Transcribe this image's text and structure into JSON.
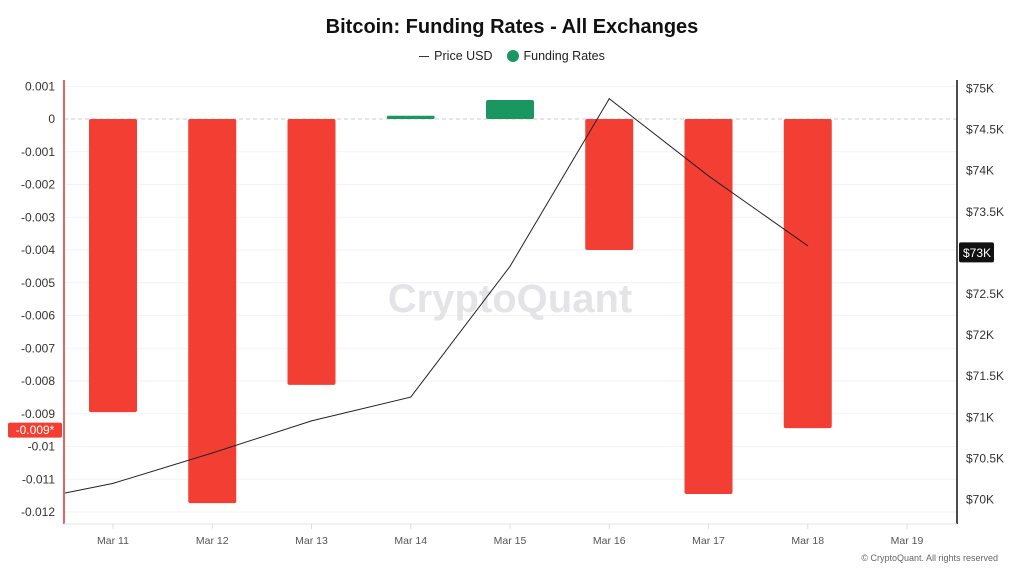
{
  "chart_data": {
    "type": "bar",
    "title": "Bitcoin: Funding Rates - All Exchanges",
    "categories": [
      "Mar 11",
      "Mar 12",
      "Mar 13",
      "Mar 14",
      "Mar 15",
      "Mar 16",
      "Mar 17",
      "Mar 18",
      "Mar 19"
    ],
    "series": [
      {
        "name": "Funding Rates",
        "type": "bar",
        "axis": "left",
        "values": [
          -0.00895,
          -0.01173,
          -0.00812,
          0.0001,
          0.00058,
          -0.004,
          -0.01145,
          -0.00944,
          null
        ]
      },
      {
        "name": "Price USD",
        "type": "line",
        "axis": "right",
        "leading_value": 70070,
        "values": [
          70190,
          70560,
          70950,
          71240,
          72830,
          74870,
          73930,
          73080,
          null
        ]
      }
    ],
    "left_axis": {
      "ylim": [
        -0.0124,
        0.0012
      ],
      "ticks": [
        "0.001",
        "0",
        "-0.001",
        "-0.002",
        "-0.003",
        "-0.004",
        "-0.005",
        "-0.006",
        "-0.007",
        "-0.008",
        "-0.009",
        "-0.01",
        "-0.011",
        "-0.012"
      ],
      "tick_values": [
        0.001,
        0,
        -0.001,
        -0.002,
        -0.003,
        -0.004,
        -0.005,
        -0.006,
        -0.007,
        -0.008,
        -0.009,
        -0.01,
        -0.011,
        -0.012
      ],
      "marker_label": "-0.009*",
      "marker_value": -0.009
    },
    "right_axis": {
      "ticks": [
        "$75K",
        "$74.5K",
        "$74K",
        "$73.5K",
        "$73K",
        "$72.5K",
        "$72K",
        "$71.5K",
        "$71K",
        "$70.5K",
        "$70K"
      ],
      "tick_values": [
        75000,
        74500,
        74000,
        73500,
        73000,
        72500,
        72000,
        71500,
        71000,
        70500,
        70000
      ],
      "highlight": "$73K"
    },
    "legend": [
      {
        "label": "Price USD"
      },
      {
        "label": "Funding Rates"
      }
    ],
    "legend_placement": "top-center",
    "grid": true,
    "colors": {
      "positive": "#1a9660",
      "negative": "#f33f33",
      "line": "#222222",
      "left_axis": "#e06666"
    }
  },
  "watermark": "CryptoQuant",
  "copyright": "© CryptoQuant. All rights reserved"
}
